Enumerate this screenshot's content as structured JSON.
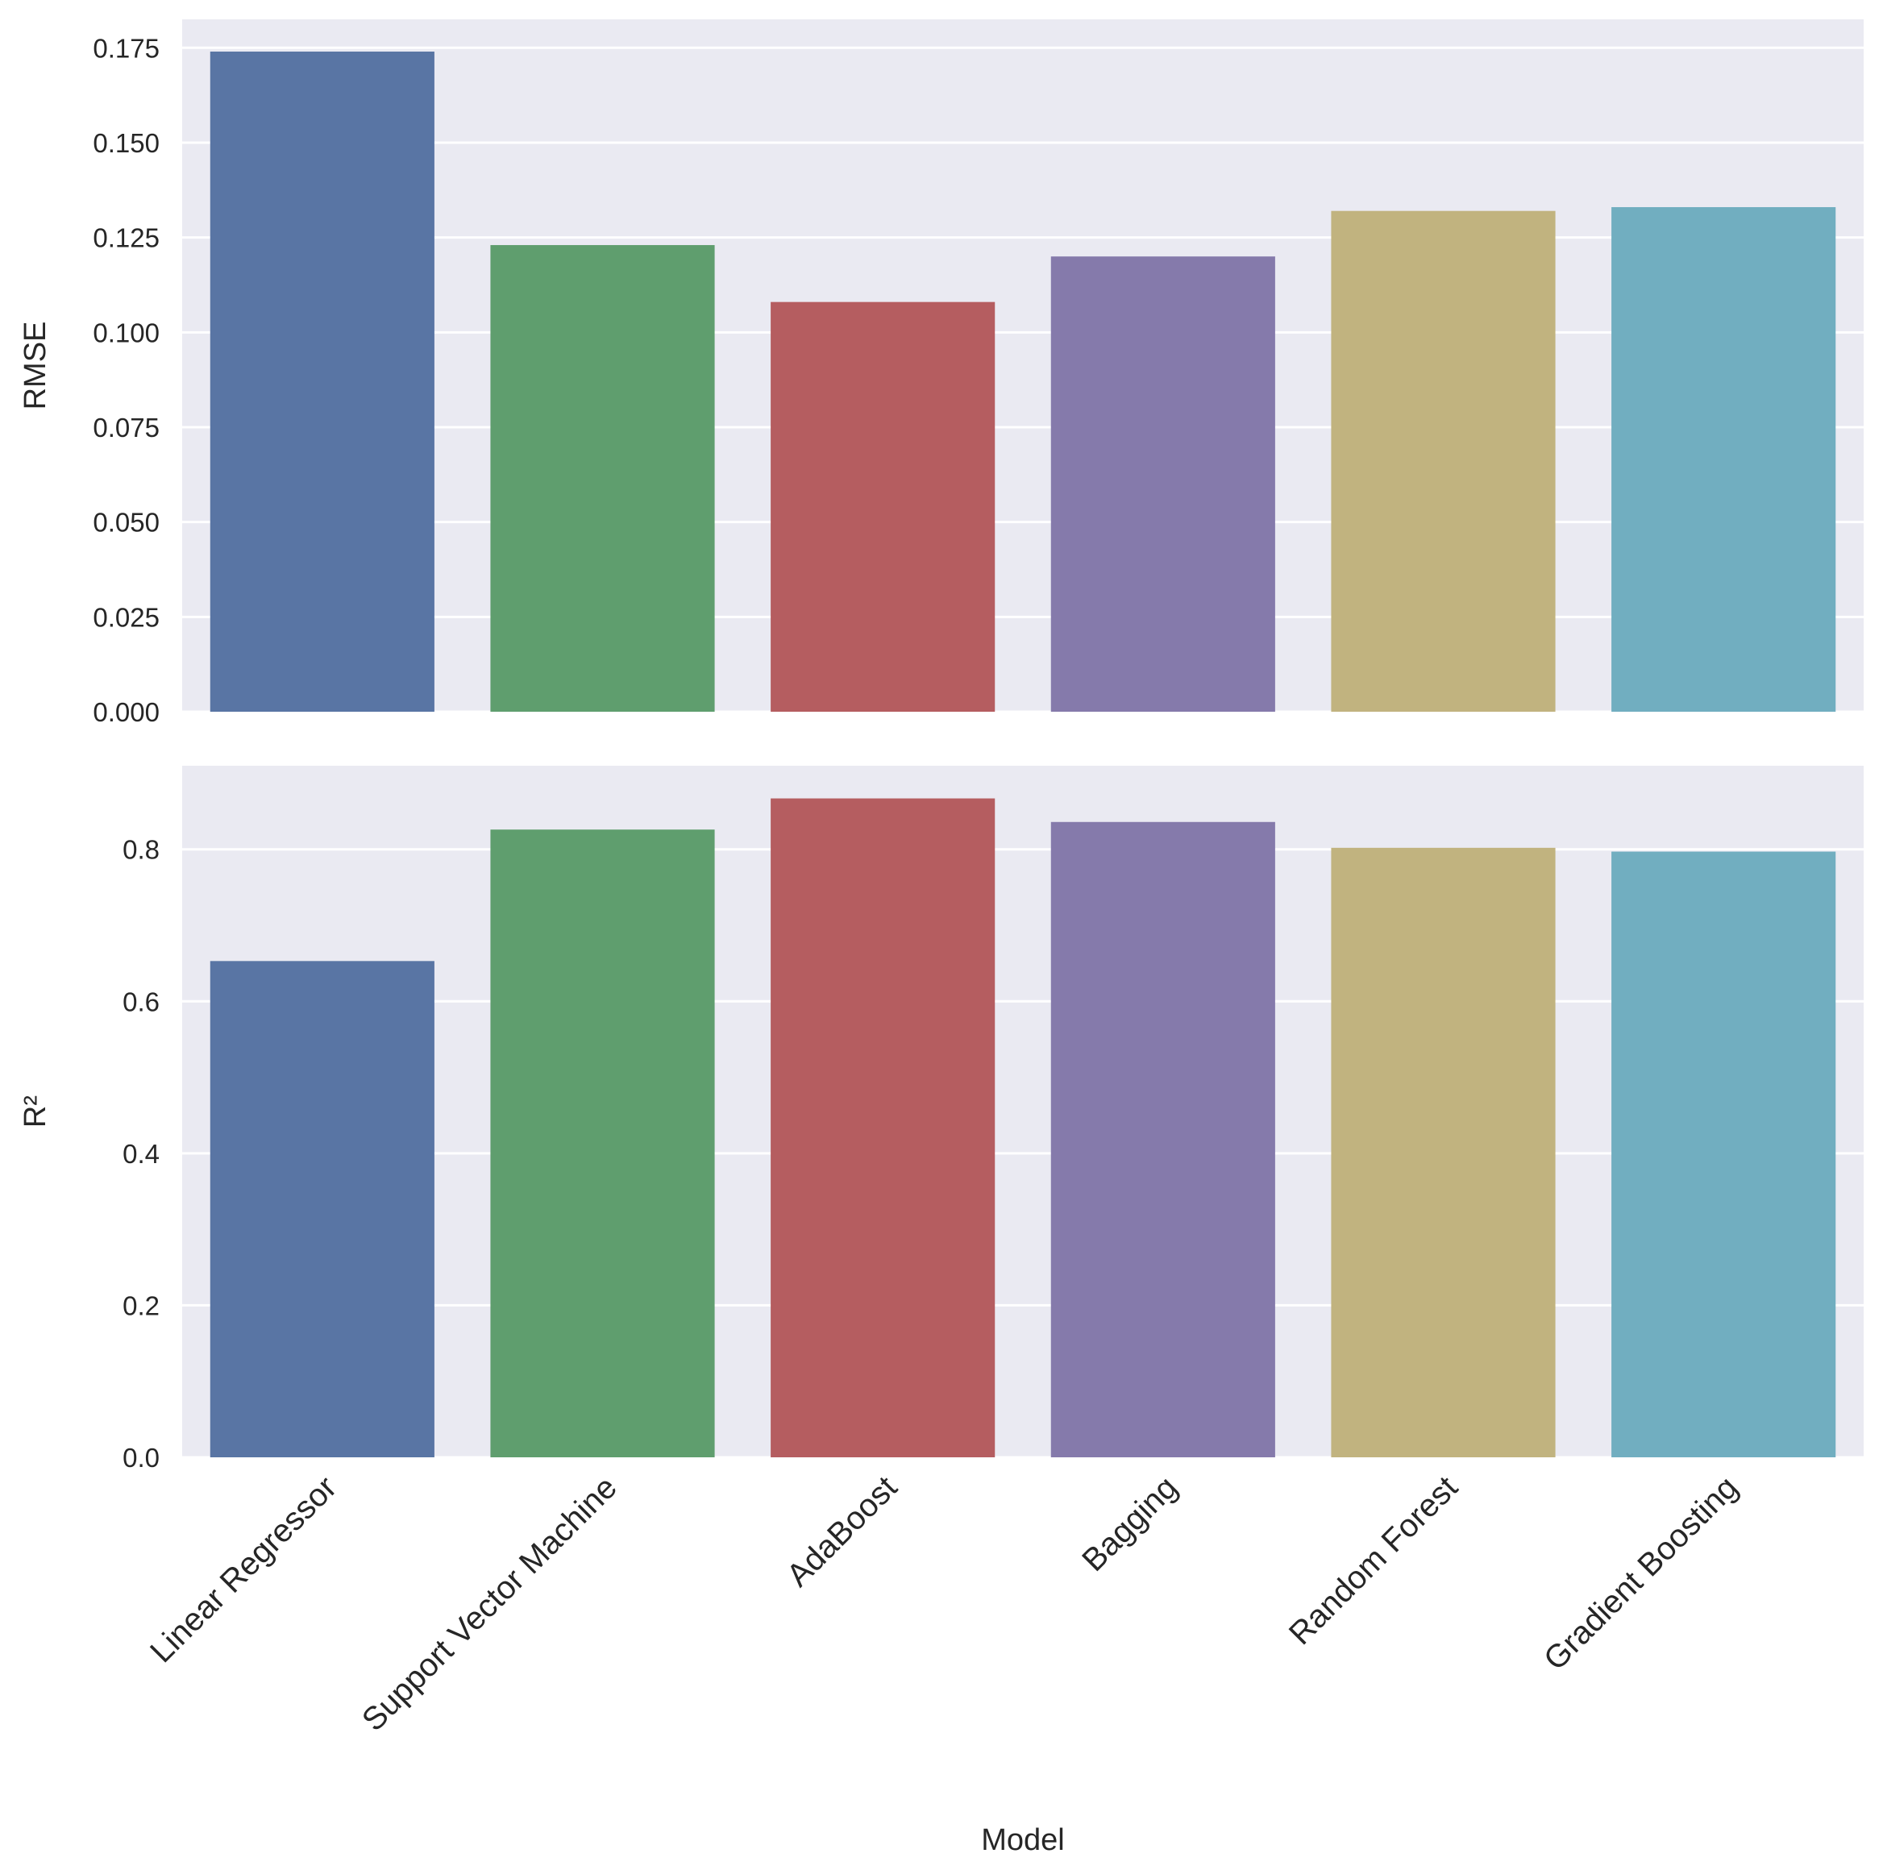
{
  "chart_data": [
    {
      "type": "bar",
      "ylabel": "RMSE",
      "xlabel": "",
      "categories": [
        "Linear Regressor",
        "Support Vector Machine",
        "AdaBoost",
        "Bagging",
        "Random Forest",
        "Gradient Boosting"
      ],
      "values": [
        0.174,
        0.123,
        0.108,
        0.12,
        0.132,
        0.133
      ],
      "ylim": [
        0,
        0.1825
      ],
      "yticks": [
        "0.000",
        "0.025",
        "0.050",
        "0.075",
        "0.100",
        "0.125",
        "0.150",
        "0.175"
      ],
      "grid": true,
      "show_x_tick_labels": false
    },
    {
      "type": "bar",
      "ylabel": "R²",
      "xlabel": "Model",
      "categories": [
        "Linear Regressor",
        "Support Vector Machine",
        "AdaBoost",
        "Bagging",
        "Random Forest",
        "Gradient Boosting"
      ],
      "values": [
        0.653,
        0.826,
        0.867,
        0.836,
        0.802,
        0.797
      ],
      "ylim": [
        0,
        0.91
      ],
      "yticks": [
        "0.0",
        "0.2",
        "0.4",
        "0.6",
        "0.8"
      ],
      "grid": true,
      "show_x_tick_labels": true
    }
  ],
  "colors": {
    "background": "#EAEAF2",
    "grid": "#FFFFFF",
    "bars": [
      "#5975A4",
      "#5F9E6E",
      "#B55D60",
      "#857AAB",
      "#C1B37F",
      "#71AEC0"
    ]
  }
}
